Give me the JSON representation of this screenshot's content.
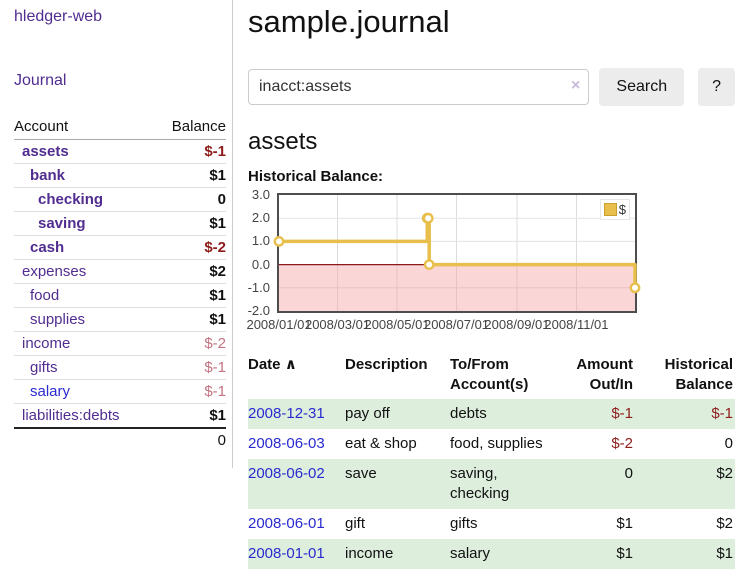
{
  "app": {
    "brand": "hledger-web",
    "nav_journal": "Journal"
  },
  "colors": {
    "purple": "#512d90",
    "blue": "#2a2ad0",
    "negative_strong": "#8f1b1b",
    "negative_soft": "#c2737f",
    "stripe_green": "#ddeedd",
    "gold": "#e8bf4d"
  },
  "sidebar": {
    "col_account": "Account",
    "col_balance": "Balance",
    "accounts": [
      {
        "name": "assets",
        "indent": 1,
        "bold": true,
        "balance": "$-1",
        "balance_style": "neg-strong",
        "link_color": "purple"
      },
      {
        "name": "bank",
        "indent": 2,
        "bold": true,
        "balance": "$1",
        "balance_style": "pos",
        "link_color": "purple"
      },
      {
        "name": "checking",
        "indent": 3,
        "bold": true,
        "balance": "0",
        "balance_style": "pos",
        "link_color": "purple"
      },
      {
        "name": "saving",
        "indent": 3,
        "bold": true,
        "balance": "$1",
        "balance_style": "pos",
        "link_color": "purple"
      },
      {
        "name": "cash",
        "indent": 2,
        "bold": true,
        "balance": "$-2",
        "balance_style": "neg-strong",
        "link_color": "purple"
      },
      {
        "name": "expenses",
        "indent": 1,
        "bold": false,
        "balance": "$2",
        "balance_style": "pos",
        "link_color": "purple"
      },
      {
        "name": "food",
        "indent": 2,
        "bold": false,
        "balance": "$1",
        "balance_style": "pos",
        "link_color": "purple"
      },
      {
        "name": "supplies",
        "indent": 2,
        "bold": false,
        "balance": "$1",
        "balance_style": "pos",
        "link_color": "purple"
      },
      {
        "name": "income",
        "indent": 1,
        "bold": false,
        "balance": "$-2",
        "balance_style": "neg-soft",
        "link_color": "purple"
      },
      {
        "name": "gifts",
        "indent": 2,
        "bold": false,
        "balance": "$-1",
        "balance_style": "neg-soft",
        "link_color": "purple"
      },
      {
        "name": "salary",
        "indent": 2,
        "bold": false,
        "balance": "$-1",
        "balance_style": "neg-soft",
        "link_color": "blue"
      },
      {
        "name": "liabilities:debts",
        "indent": 1,
        "bold": false,
        "balance": "$1",
        "balance_style": "pos",
        "link_color": "purple"
      }
    ],
    "total": "0"
  },
  "header": {
    "title": "sample.journal"
  },
  "search": {
    "value": "inacct:assets",
    "clear_icon": "×",
    "button": "Search",
    "help_button": "?"
  },
  "account_page": {
    "heading": "assets",
    "chart_label": "Historical Balance:"
  },
  "chart_data": {
    "type": "line",
    "title": "Historical Balance:",
    "step": true,
    "series": [
      {
        "name": "$",
        "points": [
          [
            "2008-01-01",
            1
          ],
          [
            "2008-06-01",
            2
          ],
          [
            "2008-06-02",
            2
          ],
          [
            "2008-06-03",
            0
          ],
          [
            "2008-12-31",
            -1
          ]
        ]
      }
    ],
    "x_range": [
      "2008-01-01",
      "2008-12-31"
    ],
    "ylim": [
      -2,
      3
    ],
    "x_ticks": [
      "2008/01/01",
      "2008/03/01",
      "2008/05/01",
      "2008/07/01",
      "2008/09/01",
      "2008/11/01"
    ],
    "y_ticks": [
      "3.0",
      "2.0",
      "1.0",
      "0.0",
      "-1.0",
      "-2.0"
    ],
    "grid": true,
    "legend": {
      "label": "$",
      "position": "top-right"
    },
    "colors": {
      "line": "#e8bf4d",
      "negative_fill": "#fcdcdc",
      "zero_line": "#8b1a1a"
    }
  },
  "transactions": {
    "columns": [
      "Date",
      "Description",
      "To/From Account(s)",
      "Amount Out/In",
      "Historical Balance"
    ],
    "sort_icon": "∧",
    "rows": [
      {
        "date": "2008-12-31",
        "description": "pay off",
        "accounts": "debts",
        "amount": "$-1",
        "amount_neg": true,
        "balance": "$-1",
        "balance_neg": true
      },
      {
        "date": "2008-06-03",
        "description": "eat & shop",
        "accounts": "food, supplies",
        "amount": "$-2",
        "amount_neg": true,
        "balance": "0",
        "balance_neg": false
      },
      {
        "date": "2008-06-02",
        "description": "save",
        "accounts": "saving, checking",
        "amount": "0",
        "amount_neg": false,
        "balance": "$2",
        "balance_neg": false
      },
      {
        "date": "2008-06-01",
        "description": "gift",
        "accounts": "gifts",
        "amount": "$1",
        "amount_neg": false,
        "balance": "$2",
        "balance_neg": false
      },
      {
        "date": "2008-01-01",
        "description": "income",
        "accounts": "salary",
        "amount": "$1",
        "amount_neg": false,
        "balance": "$1",
        "balance_neg": false
      }
    ]
  }
}
